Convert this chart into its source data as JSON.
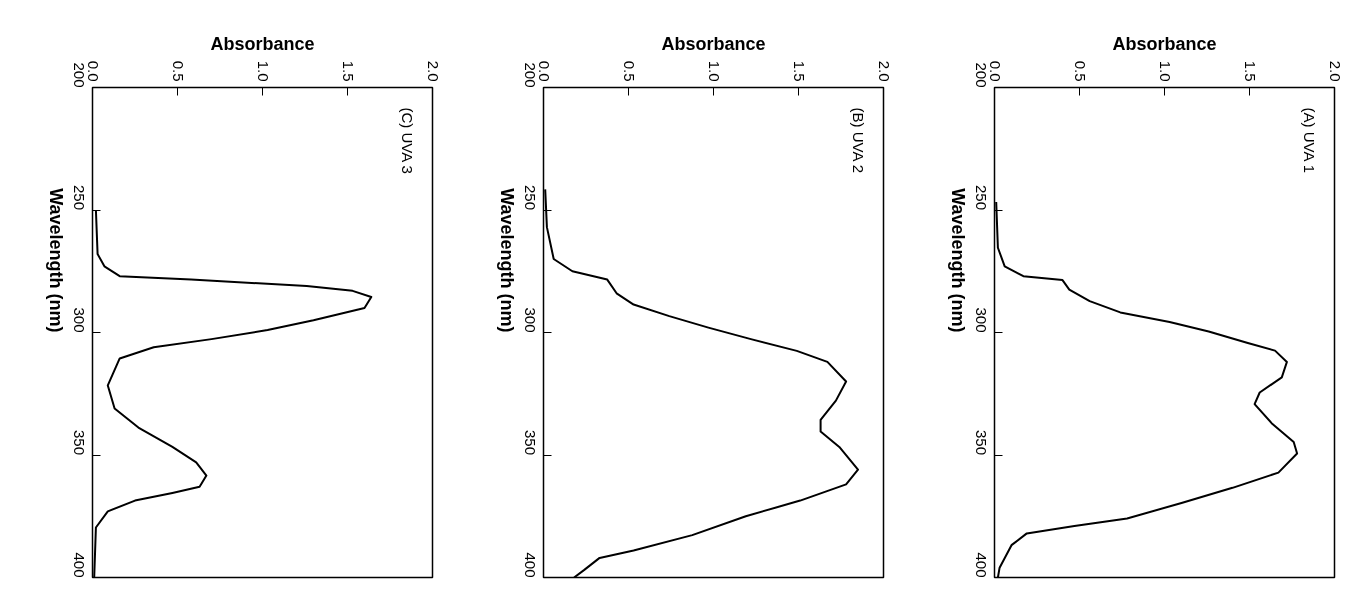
{
  "chart_data": [
    {
      "type": "line",
      "xlabel": "Absorbance",
      "ylabel": "Wavelength (nm)",
      "annotations": [
        "(A) UVA 1"
      ],
      "xlim": [
        0,
        2
      ],
      "ylim": [
        400,
        200
      ],
      "yticks": [
        200,
        250,
        300,
        350,
        400
      ],
      "xticks": [
        {
          "value": 0,
          "label": "0.0"
        },
        {
          "value": 0.5,
          "label": "0.5"
        },
        {
          "value": 1,
          "label": "1.0"
        },
        {
          "value": 1.5,
          "label": "1.5"
        },
        {
          "value": 2,
          "label": "2.0"
        }
      ],
      "series": [
        {
          "color": "#000000",
          "values": [
            246.7,
            265.4,
            273,
            277,
            278.6,
            282.5,
            287.2,
            291.8,
            295.7,
            299.6,
            304.3,
            307.4,
            312,
            318.3,
            324.5,
            329.2,
            337,
            344.7,
            349.4,
            357.2,
            363.4,
            369.6,
            375.9,
            379,
            382,
            386.8,
            396,
            400
          ],
          "x": [
            0.01,
            0.02,
            0.06,
            0.17,
            0.4,
            0.44,
            0.56,
            0.74,
            1.03,
            1.26,
            1.49,
            1.65,
            1.72,
            1.69,
            1.56,
            1.53,
            1.63,
            1.76,
            1.78,
            1.67,
            1.4,
            1.1,
            0.78,
            0.47,
            0.19,
            0.1,
            0.03,
            0.02
          ]
        }
      ]
    },
    {
      "type": "line",
      "xlabel": "Absorbance",
      "ylabel": "Wavelength (nm)",
      "annotations": [
        "(B) UVA 2"
      ],
      "xlim": [
        0,
        2
      ],
      "ylim": [
        400,
        200
      ],
      "yticks": [
        200,
        250,
        300,
        350,
        400
      ],
      "xticks": [
        {
          "value": 0,
          "label": "0.0"
        },
        {
          "value": 0.5,
          "label": "0.5"
        },
        {
          "value": 1,
          "label": "1.0"
        },
        {
          "value": 1.5,
          "label": "1.5"
        },
        {
          "value": 2,
          "label": "2.0"
        }
      ],
      "series": [
        {
          "color": "#000000",
          "values": [
            241.6,
            257,
            270,
            275,
            278.4,
            284,
            288.6,
            293.3,
            298,
            302.7,
            307.5,
            312,
            320,
            327.8,
            335.7,
            340.4,
            346.7,
            356,
            362,
            368.6,
            375,
            382.7,
            389,
            392,
            396.9,
            400
          ],
          "x": [
            0.01,
            0.02,
            0.06,
            0.17,
            0.375,
            0.43,
            0.53,
            0.74,
            0.97,
            1.22,
            1.49,
            1.67,
            1.78,
            1.72,
            1.63,
            1.63,
            1.74,
            1.85,
            1.78,
            1.51,
            1.19,
            0.875,
            0.53,
            0.33,
            0.24,
            0.18
          ]
        }
      ]
    },
    {
      "type": "line",
      "xlabel": "Absorbance",
      "ylabel": "Wavelength (nm)",
      "annotations": [
        "(C) UVA 3"
      ],
      "xlim": [
        0,
        2
      ],
      "ylim": [
        400,
        200
      ],
      "yticks": [
        200,
        250,
        300,
        350,
        400
      ],
      "xticks": [
        {
          "value": 0,
          "label": "0.0"
        },
        {
          "value": 0.5,
          "label": "0.5"
        },
        {
          "value": 1,
          "label": "1.0"
        },
        {
          "value": 1.5,
          "label": "1.5"
        },
        {
          "value": 2,
          "label": "2.0"
        }
      ],
      "series": [
        {
          "color": "#000000",
          "values": [
            250,
            268,
            273,
            277,
            278.4,
            281,
            283,
            285.5,
            290,
            295,
            299,
            302.7,
            306,
            310.6,
            321.6,
            331,
            338.8,
            346.7,
            353,
            358.4,
            363,
            365.5,
            368.6,
            373,
            379.6,
            400
          ],
          "x": [
            0.02,
            0.03,
            0.07,
            0.16,
            0.58,
            1.26,
            1.53,
            1.64,
            1.6,
            1.3,
            1.03,
            0.7,
            0.36,
            0.16,
            0.09,
            0.13,
            0.27,
            0.47,
            0.61,
            0.67,
            0.63,
            0.47,
            0.25,
            0.09,
            0.02,
            0.01
          ]
        }
      ]
    }
  ]
}
